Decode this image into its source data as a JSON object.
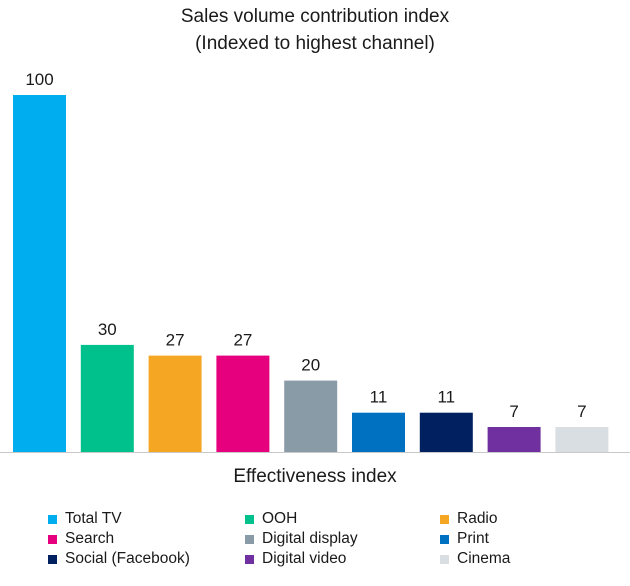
{
  "chart_data": {
    "type": "bar",
    "title": "Sales volume contribution index",
    "subtitle": "(Indexed to highest channel)",
    "xlabel": "Effectiveness index",
    "ylabel": "",
    "ylim": [
      0,
      100
    ],
    "grid": false,
    "legend_placement": "bottom",
    "categories": [
      "Total TV",
      "OOH",
      "Radio",
      "Search",
      "Digital display",
      "Print",
      "Social (Facebook)",
      "Digital video",
      "Cinema"
    ],
    "values": [
      100,
      30,
      27,
      27,
      20,
      11,
      11,
      7,
      7
    ],
    "colors": [
      "#00aeef",
      "#00c08b",
      "#f5a623",
      "#e6007e",
      "#8a9ba8",
      "#0070c0",
      "#002060",
      "#7030a0",
      "#d9dee2"
    ]
  },
  "legend": {
    "items": [
      {
        "label": "Total TV",
        "color": "#00aeef"
      },
      {
        "label": "OOH",
        "color": "#00c08b"
      },
      {
        "label": "Radio",
        "color": "#f5a623"
      },
      {
        "label": "Search",
        "color": "#e6007e"
      },
      {
        "label": "Digital display",
        "color": "#8a9ba8"
      },
      {
        "label": "Print",
        "color": "#0070c0"
      },
      {
        "label": "Social (Facebook)",
        "color": "#002060"
      },
      {
        "label": "Digital video",
        "color": "#7030a0"
      },
      {
        "label": "Cinema",
        "color": "#d9dee2"
      }
    ]
  }
}
